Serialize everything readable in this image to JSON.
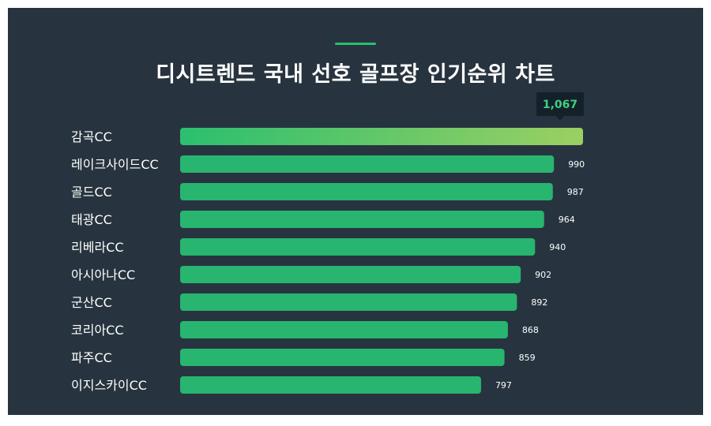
{
  "title": "디시트렌드 국내 선호 골프장 인기순위 차트",
  "colors": {
    "background": "#27343f",
    "bar": "#27b56f",
    "top_bar_start": "#2bbf6f",
    "top_bar_end": "#9bd063",
    "accent": "#2bbf6f",
    "top_value": "#3ed27f",
    "tooltip_bg": "#14202a",
    "text": "#ffffff"
  },
  "chart_data": {
    "type": "bar",
    "orientation": "horizontal",
    "categories": [
      "감곡CC",
      "레이크사이드CC",
      "골드CC",
      "태광CC",
      "리베라CC",
      "아시아나CC",
      "군산CC",
      "코리아CC",
      "파주CC",
      "이지스카이CC"
    ],
    "values": [
      1067,
      990,
      987,
      964,
      940,
      902,
      892,
      868,
      859,
      797
    ],
    "value_labels": [
      "1,067",
      "990",
      "987",
      "964",
      "940",
      "902",
      "892",
      "868",
      "859",
      "797"
    ],
    "highlight_index": 0,
    "grid": false,
    "legend": "none"
  }
}
